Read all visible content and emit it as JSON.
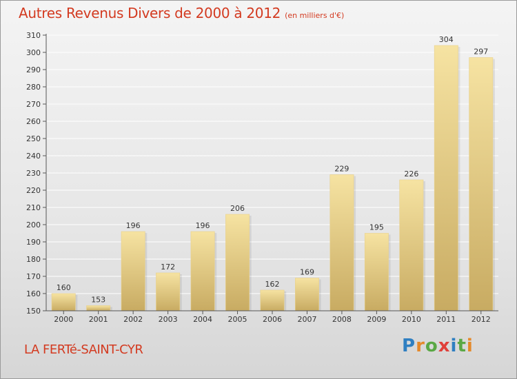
{
  "header": {
    "title": "Autres Revenus Divers de 2000 à 2012",
    "subtitle": "(en milliers d'€)"
  },
  "footer": {
    "place": "LA FERTé-SAINT-CYR",
    "logo_text": "Proxiti",
    "logo_letters": [
      {
        "ch": "P",
        "color": "#2f7fc1"
      },
      {
        "ch": "r",
        "color": "#e5892a"
      },
      {
        "ch": "o",
        "color": "#5aa845"
      },
      {
        "ch": "x",
        "color": "#e0403a"
      },
      {
        "ch": "i",
        "color": "#2f7fc1"
      },
      {
        "ch": "t",
        "color": "#5aa845"
      },
      {
        "ch": "i",
        "color": "#e5892a"
      }
    ]
  },
  "colors": {
    "bar_light": "#f6e3a2",
    "bar_dark": "#c8ab62",
    "axis": "#555555",
    "grid": "#ffffff",
    "title": "#d33a20"
  },
  "chart_data": {
    "type": "bar",
    "title": "Autres Revenus Divers de 2000 à 2012",
    "subtitle": "(en milliers d'€)",
    "categories": [
      "2000",
      "2001",
      "2002",
      "2003",
      "2004",
      "2005",
      "2006",
      "2007",
      "2008",
      "2009",
      "2010",
      "2011",
      "2012"
    ],
    "values": [
      160,
      153,
      196,
      172,
      196,
      206,
      162,
      169,
      229,
      195,
      226,
      304,
      297
    ],
    "ylim": [
      150,
      310
    ],
    "yticks": [
      150,
      160,
      170,
      180,
      190,
      200,
      210,
      220,
      230,
      240,
      250,
      260,
      270,
      280,
      290,
      300,
      310
    ],
    "grid": true,
    "legend": "none"
  }
}
